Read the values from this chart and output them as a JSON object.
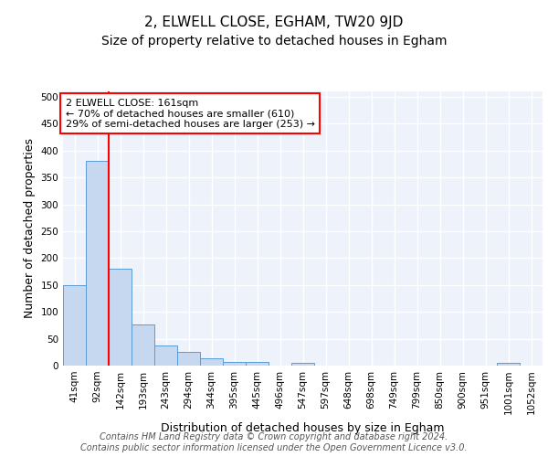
{
  "title": "2, ELWELL CLOSE, EGHAM, TW20 9JD",
  "subtitle": "Size of property relative to detached houses in Egham",
  "xlabel": "Distribution of detached houses by size in Egham",
  "ylabel": "Number of detached properties",
  "categories": [
    "41sqm",
    "92sqm",
    "142sqm",
    "193sqm",
    "243sqm",
    "294sqm",
    "344sqm",
    "395sqm",
    "445sqm",
    "496sqm",
    "547sqm",
    "597sqm",
    "648sqm",
    "698sqm",
    "749sqm",
    "799sqm",
    "850sqm",
    "900sqm",
    "951sqm",
    "1001sqm",
    "1052sqm"
  ],
  "values": [
    150,
    380,
    180,
    77,
    37,
    25,
    14,
    6,
    6,
    0,
    5,
    0,
    0,
    0,
    0,
    0,
    0,
    0,
    0,
    5,
    0
  ],
  "bar_color": "#c5d8f0",
  "bar_edge_color": "#5b9bd5",
  "red_line_index": 2,
  "annotation_text": "2 ELWELL CLOSE: 161sqm\n← 70% of detached houses are smaller (610)\n29% of semi-detached houses are larger (253) →",
  "ylim": [
    0,
    510
  ],
  "yticks": [
    0,
    50,
    100,
    150,
    200,
    250,
    300,
    350,
    400,
    450,
    500
  ],
  "background_color": "#eef3fb",
  "grid_color": "white",
  "footer_text": "Contains HM Land Registry data © Crown copyright and database right 2024.\nContains public sector information licensed under the Open Government Licence v3.0.",
  "title_fontsize": 11,
  "subtitle_fontsize": 10,
  "xlabel_fontsize": 9,
  "ylabel_fontsize": 9,
  "tick_fontsize": 7.5,
  "annotation_fontsize": 8,
  "footer_fontsize": 7
}
